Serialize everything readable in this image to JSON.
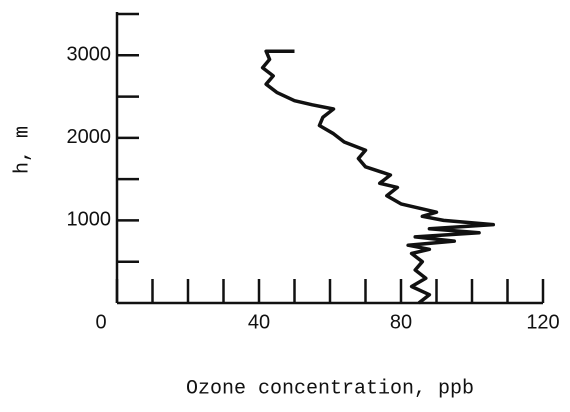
{
  "chart_data": {
    "type": "line",
    "xlabel": "Ozone concentration, ppb",
    "ylabel": "h, m",
    "xlim": [
      0,
      120
    ],
    "xticks": [
      0,
      40,
      80,
      120
    ],
    "xminorticks": [
      10,
      20,
      30,
      50,
      60,
      70,
      90,
      100,
      110
    ],
    "ylim": [
      0,
      3500
    ],
    "yticks": [
      1000,
      2000,
      3000
    ],
    "yminorticks": [
      500,
      1500,
      2500,
      3500
    ],
    "color": "#111111",
    "x": [
      85,
      88,
      83,
      87,
      84,
      86,
      83,
      88,
      82,
      95,
      84,
      102,
      88,
      106,
      92,
      86,
      90,
      80,
      76,
      79,
      74,
      77,
      70,
      68,
      70,
      64,
      61,
      57,
      58,
      61,
      55,
      50,
      45,
      42,
      44,
      41,
      43,
      42,
      50
    ],
    "values": [
      0,
      100,
      200,
      300,
      400,
      500,
      600,
      650,
      700,
      750,
      800,
      850,
      900,
      950,
      1000,
      1050,
      1100,
      1200,
      1300,
      1400,
      1450,
      1550,
      1650,
      1750,
      1850,
      1950,
      2050,
      2150,
      2250,
      2350,
      2400,
      2450,
      2550,
      2650,
      2750,
      2850,
      2950,
      3050,
      3050
    ]
  }
}
